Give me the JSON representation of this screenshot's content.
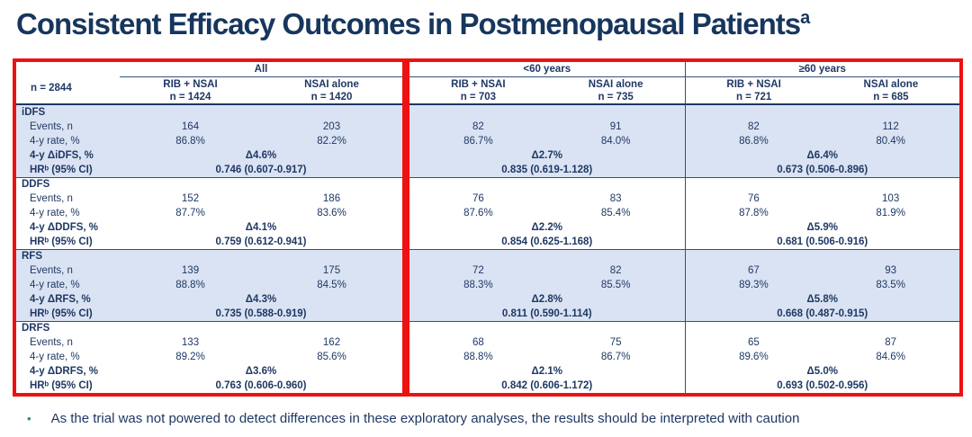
{
  "title": {
    "text": "Consistent Efficacy Outcomes in Postmenopausal Patients",
    "superscript": "a"
  },
  "colors": {
    "title_navy": "#17365d",
    "table_navy": "#1f3864",
    "band_blue": "#dae3f3",
    "highlight_red": "#ee1111",
    "bullet_teal": "#1f8a7c"
  },
  "table": {
    "row_label_header": "n = 2844",
    "groups": [
      {
        "label": "All",
        "columns": [
          {
            "arm": "RIB + NSAI",
            "n": "n = 1424"
          },
          {
            "arm": "NSAI alone",
            "n": "n = 1420"
          }
        ]
      },
      {
        "label": "<60 years",
        "columns": [
          {
            "arm": "RIB + NSAI",
            "n": "n = 703"
          },
          {
            "arm": "NSAI alone",
            "n": "n = 735"
          }
        ]
      },
      {
        "label": "≥60 years",
        "columns": [
          {
            "arm": "RIB + NSAI",
            "n": "n = 721"
          },
          {
            "arm": "NSAI alone",
            "n": "n = 685"
          }
        ]
      }
    ],
    "sections": [
      {
        "name": "iDFS",
        "rows": [
          {
            "label": "Events, n",
            "type": "per-arm",
            "bold": false,
            "values": [
              "164",
              "203",
              "82",
              "91",
              "82",
              "112"
            ]
          },
          {
            "label": "4-y rate, %",
            "type": "per-arm",
            "bold": false,
            "values": [
              "86.8%",
              "82.2%",
              "86.7%",
              "84.0%",
              "86.8%",
              "80.4%"
            ]
          },
          {
            "label": "4-y ΔiDFS, %",
            "type": "per-group",
            "bold": true,
            "values": [
              "Δ4.6%",
              "Δ2.7%",
              "Δ6.4%"
            ]
          },
          {
            "label": "HRᵇ (95% CI)",
            "type": "per-group",
            "bold": true,
            "values": [
              "0.746 (0.607-0.917)",
              "0.835 (0.619-1.128)",
              "0.673 (0.506-0.896)"
            ]
          }
        ]
      },
      {
        "name": "DDFS",
        "rows": [
          {
            "label": "Events, n",
            "type": "per-arm",
            "bold": false,
            "values": [
              "152",
              "186",
              "76",
              "83",
              "76",
              "103"
            ]
          },
          {
            "label": "4-y rate, %",
            "type": "per-arm",
            "bold": false,
            "values": [
              "87.7%",
              "83.6%",
              "87.6%",
              "85.4%",
              "87.8%",
              "81.9%"
            ]
          },
          {
            "label": "4-y ΔDDFS, %",
            "type": "per-group",
            "bold": true,
            "values": [
              "Δ4.1%",
              "Δ2.2%",
              "Δ5.9%"
            ]
          },
          {
            "label": "HRᵇ (95% CI)",
            "type": "per-group",
            "bold": true,
            "values": [
              "0.759 (0.612-0.941)",
              "0.854 (0.625-1.168)",
              "0.681 (0.506-0.916)"
            ]
          }
        ]
      },
      {
        "name": "RFS",
        "rows": [
          {
            "label": "Events, n",
            "type": "per-arm",
            "bold": false,
            "values": [
              "139",
              "175",
              "72",
              "82",
              "67",
              "93"
            ]
          },
          {
            "label": "4-y rate, %",
            "type": "per-arm",
            "bold": false,
            "values": [
              "88.8%",
              "84.5%",
              "88.3%",
              "85.5%",
              "89.3%",
              "83.5%"
            ]
          },
          {
            "label": "4-y ΔRFS, %",
            "type": "per-group",
            "bold": true,
            "values": [
              "Δ4.3%",
              "Δ2.8%",
              "Δ5.8%"
            ]
          },
          {
            "label": "HRᵇ (95% CI)",
            "type": "per-group",
            "bold": true,
            "values": [
              "0.735 (0.588-0.919)",
              "0.811 (0.590-1.114)",
              "0.668 (0.487-0.915)"
            ]
          }
        ]
      },
      {
        "name": "DRFS",
        "rows": [
          {
            "label": "Events, n",
            "type": "per-arm",
            "bold": false,
            "values": [
              "133",
              "162",
              "68",
              "75",
              "65",
              "87"
            ]
          },
          {
            "label": "4-y rate, %",
            "type": "per-arm",
            "bold": false,
            "values": [
              "89.2%",
              "85.6%",
              "88.8%",
              "86.7%",
              "89.6%",
              "84.6%"
            ]
          },
          {
            "label": "4-y ΔDRFS, %",
            "type": "per-group",
            "bold": true,
            "values": [
              "Δ3.6%",
              "Δ2.1%",
              "Δ5.0%"
            ]
          },
          {
            "label": "HRᵇ (95% CI)",
            "type": "per-group",
            "bold": true,
            "values": [
              "0.763 (0.606-0.960)",
              "0.842 (0.606-1.172)",
              "0.693 (0.502-0.956)"
            ]
          }
        ]
      }
    ]
  },
  "footnote": {
    "bullet": "•",
    "text": "As the trial was not powered to detect differences in these exploratory analyses, the results should be interpreted with caution"
  }
}
